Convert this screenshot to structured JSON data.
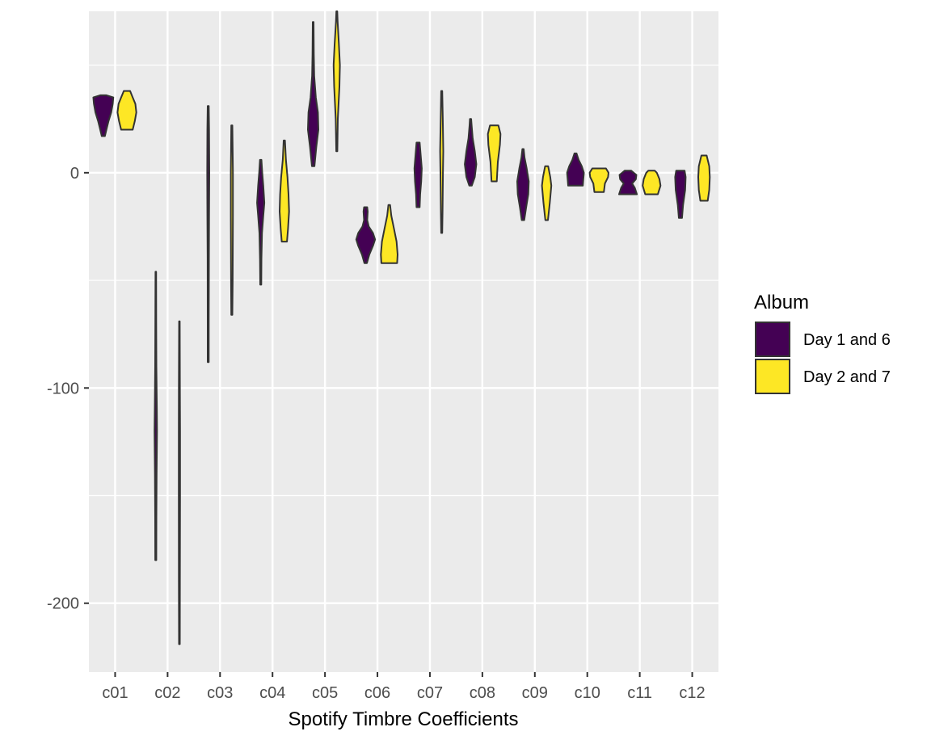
{
  "chart_data": {
    "type": "violin",
    "title": "",
    "xlabel": "Spotify Timbre Coefficients",
    "ylabel": "",
    "categories": [
      "c01",
      "c02",
      "c03",
      "c04",
      "c05",
      "c06",
      "c07",
      "c08",
      "c09",
      "c10",
      "c11",
      "c12"
    ],
    "y_ticks": [
      0,
      -100,
      -200
    ],
    "ylim": [
      -232,
      75
    ],
    "grid": true,
    "legend": {
      "title": "Album",
      "position": "right",
      "entries": [
        {
          "label": "Day 1 and 6",
          "color": "#440154"
        },
        {
          "label": "Day 2 and 7",
          "color": "#FDE725"
        }
      ]
    },
    "series": [
      {
        "name": "Day 1 and 6",
        "color": "#440154",
        "violins": [
          {
            "category": "c01",
            "profile": [
              [
                17,
                0.15
              ],
              [
                20,
                0.3
              ],
              [
                24,
                0.5
              ],
              [
                28,
                0.75
              ],
              [
                32,
                0.9
              ],
              [
                35,
                0.95
              ],
              [
                36,
                0.3
              ]
            ]
          },
          {
            "category": "c02",
            "profile": [
              [
                -180,
                0.05
              ],
              [
                -160,
                0.06
              ],
              [
                -140,
                0.08
              ],
              [
                -120,
                0.12
              ],
              [
                -110,
                0.1
              ],
              [
                -90,
                0.06
              ],
              [
                -70,
                0.04
              ],
              [
                -46,
                0.03
              ]
            ]
          },
          {
            "category": "c03",
            "profile": [
              [
                -88,
                0.05
              ],
              [
                -70,
                0.05
              ],
              [
                -40,
                0.06
              ],
              [
                -20,
                0.08
              ],
              [
                0,
                0.1
              ],
              [
                20,
                0.08
              ],
              [
                31,
                0.05
              ]
            ]
          },
          {
            "category": "c04",
            "profile": [
              [
                -52,
                0.05
              ],
              [
                -40,
                0.07
              ],
              [
                -28,
                0.12
              ],
              [
                -20,
                0.25
              ],
              [
                -14,
                0.35
              ],
              [
                -6,
                0.25
              ],
              [
                0,
                0.15
              ],
              [
                6,
                0.07
              ]
            ]
          },
          {
            "category": "c05",
            "profile": [
              [
                3,
                0.12
              ],
              [
                12,
                0.3
              ],
              [
                20,
                0.5
              ],
              [
                28,
                0.45
              ],
              [
                35,
                0.25
              ],
              [
                45,
                0.1
              ],
              [
                55,
                0.06
              ],
              [
                70,
                0.04
              ]
            ]
          },
          {
            "category": "c06",
            "profile": [
              [
                -42,
                0.12
              ],
              [
                -38,
                0.35
              ],
              [
                -34,
                0.7
              ],
              [
                -31,
                0.9
              ],
              [
                -28,
                0.7
              ],
              [
                -25,
                0.3
              ],
              [
                -22,
                0.15
              ],
              [
                -18,
                0.2
              ],
              [
                -16,
                0.15
              ]
            ]
          },
          {
            "category": "c07",
            "profile": [
              [
                -16,
                0.15
              ],
              [
                -10,
                0.2
              ],
              [
                -4,
                0.3
              ],
              [
                2,
                0.35
              ],
              [
                8,
                0.25
              ],
              [
                14,
                0.15
              ]
            ]
          },
          {
            "category": "c08",
            "profile": [
              [
                -6,
                0.12
              ],
              [
                -2,
                0.4
              ],
              [
                4,
                0.55
              ],
              [
                10,
                0.4
              ],
              [
                16,
                0.2
              ],
              [
                22,
                0.1
              ],
              [
                25,
                0.06
              ]
            ]
          },
          {
            "category": "c09",
            "profile": [
              [
                -22,
                0.12
              ],
              [
                -16,
                0.3
              ],
              [
                -10,
                0.5
              ],
              [
                -4,
                0.55
              ],
              [
                2,
                0.35
              ],
              [
                7,
                0.15
              ],
              [
                11,
                0.06
              ]
            ]
          },
          {
            "category": "c10",
            "profile": [
              [
                -6,
                0.7
              ],
              [
                -3,
                0.75
              ],
              [
                0,
                0.8
              ],
              [
                3,
                0.6
              ],
              [
                6,
                0.3
              ],
              [
                9,
                0.1
              ]
            ]
          },
          {
            "category": "c11",
            "profile": [
              [
                -10,
                0.85
              ],
              [
                -7,
                0.65
              ],
              [
                -5,
                0.4
              ],
              [
                -3,
                0.75
              ],
              [
                -1,
                0.8
              ],
              [
                1,
                0.3
              ]
            ]
          },
          {
            "category": "c12",
            "profile": [
              [
                -21,
                0.15
              ],
              [
                -15,
                0.25
              ],
              [
                -8,
                0.45
              ],
              [
                -2,
                0.5
              ],
              [
                1,
                0.4
              ]
            ]
          }
        ]
      },
      {
        "name": "Day 2 and 7",
        "color": "#FDE725",
        "violins": [
          {
            "category": "c01",
            "profile": [
              [
                20,
                0.55
              ],
              [
                24,
                0.75
              ],
              [
                28,
                0.9
              ],
              [
                32,
                0.8
              ],
              [
                35,
                0.55
              ],
              [
                38,
                0.3
              ]
            ]
          },
          {
            "category": "c02",
            "profile": [
              [
                -219,
                0.04
              ],
              [
                -190,
                0.05
              ],
              [
                -150,
                0.06
              ],
              [
                -120,
                0.06
              ],
              [
                -100,
                0.05
              ],
              [
                -69,
                0.03
              ]
            ]
          },
          {
            "category": "c03",
            "profile": [
              [
                -66,
                0.05
              ],
              [
                -50,
                0.08
              ],
              [
                -20,
                0.1
              ],
              [
                0,
                0.1
              ],
              [
                10,
                0.08
              ],
              [
                22,
                0.05
              ]
            ]
          },
          {
            "category": "c04",
            "profile": [
              [
                -32,
                0.25
              ],
              [
                -26,
                0.35
              ],
              [
                -18,
                0.45
              ],
              [
                -10,
                0.4
              ],
              [
                -2,
                0.3
              ],
              [
                6,
                0.15
              ],
              [
                15,
                0.06
              ]
            ]
          },
          {
            "category": "c05",
            "profile": [
              [
                10,
                0.05
              ],
              [
                25,
                0.1
              ],
              [
                40,
                0.25
              ],
              [
                50,
                0.3
              ],
              [
                60,
                0.2
              ],
              [
                70,
                0.08
              ],
              [
                75,
                0.04
              ]
            ]
          },
          {
            "category": "c06",
            "profile": [
              [
                -42,
                0.75
              ],
              [
                -38,
                0.8
              ],
              [
                -32,
                0.7
              ],
              [
                -26,
                0.45
              ],
              [
                -20,
                0.2
              ],
              [
                -15,
                0.08
              ]
            ]
          },
          {
            "category": "c07",
            "profile": [
              [
                -28,
                0.05
              ],
              [
                -18,
                0.08
              ],
              [
                0,
                0.12
              ],
              [
                10,
                0.15
              ],
              [
                25,
                0.1
              ],
              [
                38,
                0.05
              ]
            ]
          },
          {
            "category": "c08",
            "profile": [
              [
                -4,
                0.25
              ],
              [
                5,
                0.35
              ],
              [
                13,
                0.55
              ],
              [
                18,
                0.6
              ],
              [
                22,
                0.4
              ]
            ]
          },
          {
            "category": "c09",
            "profile": [
              [
                -22,
                0.12
              ],
              [
                -14,
                0.3
              ],
              [
                -6,
                0.45
              ],
              [
                -2,
                0.35
              ],
              [
                3,
                0.15
              ]
            ]
          },
          {
            "category": "c10",
            "profile": [
              [
                -9,
                0.45
              ],
              [
                -5,
                0.55
              ],
              [
                -2,
                0.85
              ],
              [
                0,
                0.9
              ],
              [
                2,
                0.65
              ]
            ]
          },
          {
            "category": "c11",
            "profile": [
              [
                -10,
                0.6
              ],
              [
                -6,
                0.85
              ],
              [
                -3,
                0.75
              ],
              [
                0,
                0.5
              ],
              [
                1,
                0.3
              ]
            ]
          },
          {
            "category": "c12",
            "profile": [
              [
                -13,
                0.35
              ],
              [
                -8,
                0.5
              ],
              [
                -2,
                0.55
              ],
              [
                3,
                0.5
              ],
              [
                8,
                0.25
              ]
            ]
          }
        ]
      }
    ]
  }
}
